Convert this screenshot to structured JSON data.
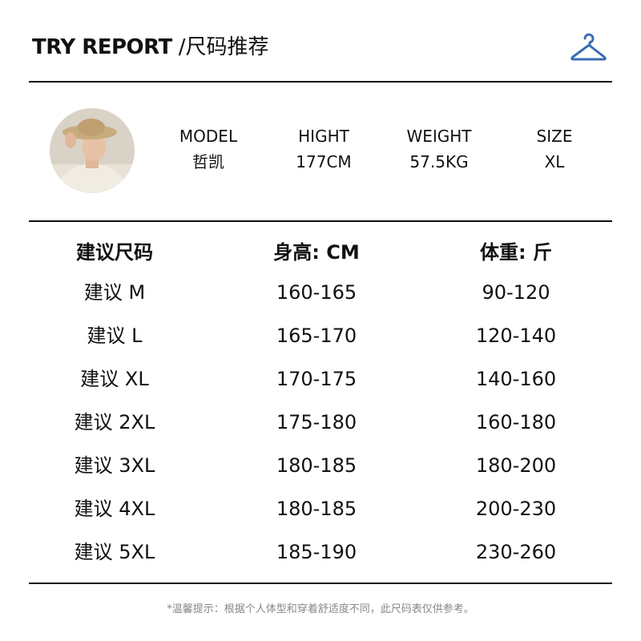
{
  "header": {
    "title_en": "TRY REPORT",
    "title_cn": "/尺码推荐",
    "icon": "hanger-icon",
    "accent_color": "#3a6db5"
  },
  "model": {
    "columns": [
      {
        "label": "MODEL",
        "value": "哲凯"
      },
      {
        "label": "HIGHT",
        "value": "177CM"
      },
      {
        "label": "WEIGHT",
        "value": "57.5KG"
      },
      {
        "label": "SIZE",
        "value": "XL"
      }
    ]
  },
  "table": {
    "headers": [
      "建议尺码",
      "身高: CM",
      "体重: 斤"
    ],
    "rows": [
      [
        "建议 M",
        "160-165",
        "90-120"
      ],
      [
        "建议 L",
        "165-170",
        "120-140"
      ],
      [
        "建议 XL",
        "170-175",
        "140-160"
      ],
      [
        "建议 2XL",
        "175-180",
        "160-180"
      ],
      [
        "建议 3XL",
        "180-185",
        "180-200"
      ],
      [
        "建议 4XL",
        "180-185",
        "200-230"
      ],
      [
        "建议 5XL",
        "185-190",
        "230-260"
      ]
    ]
  },
  "footnote": "*温馨提示：根据个人体型和穿着舒适度不同，此尺码表仅供参考。"
}
